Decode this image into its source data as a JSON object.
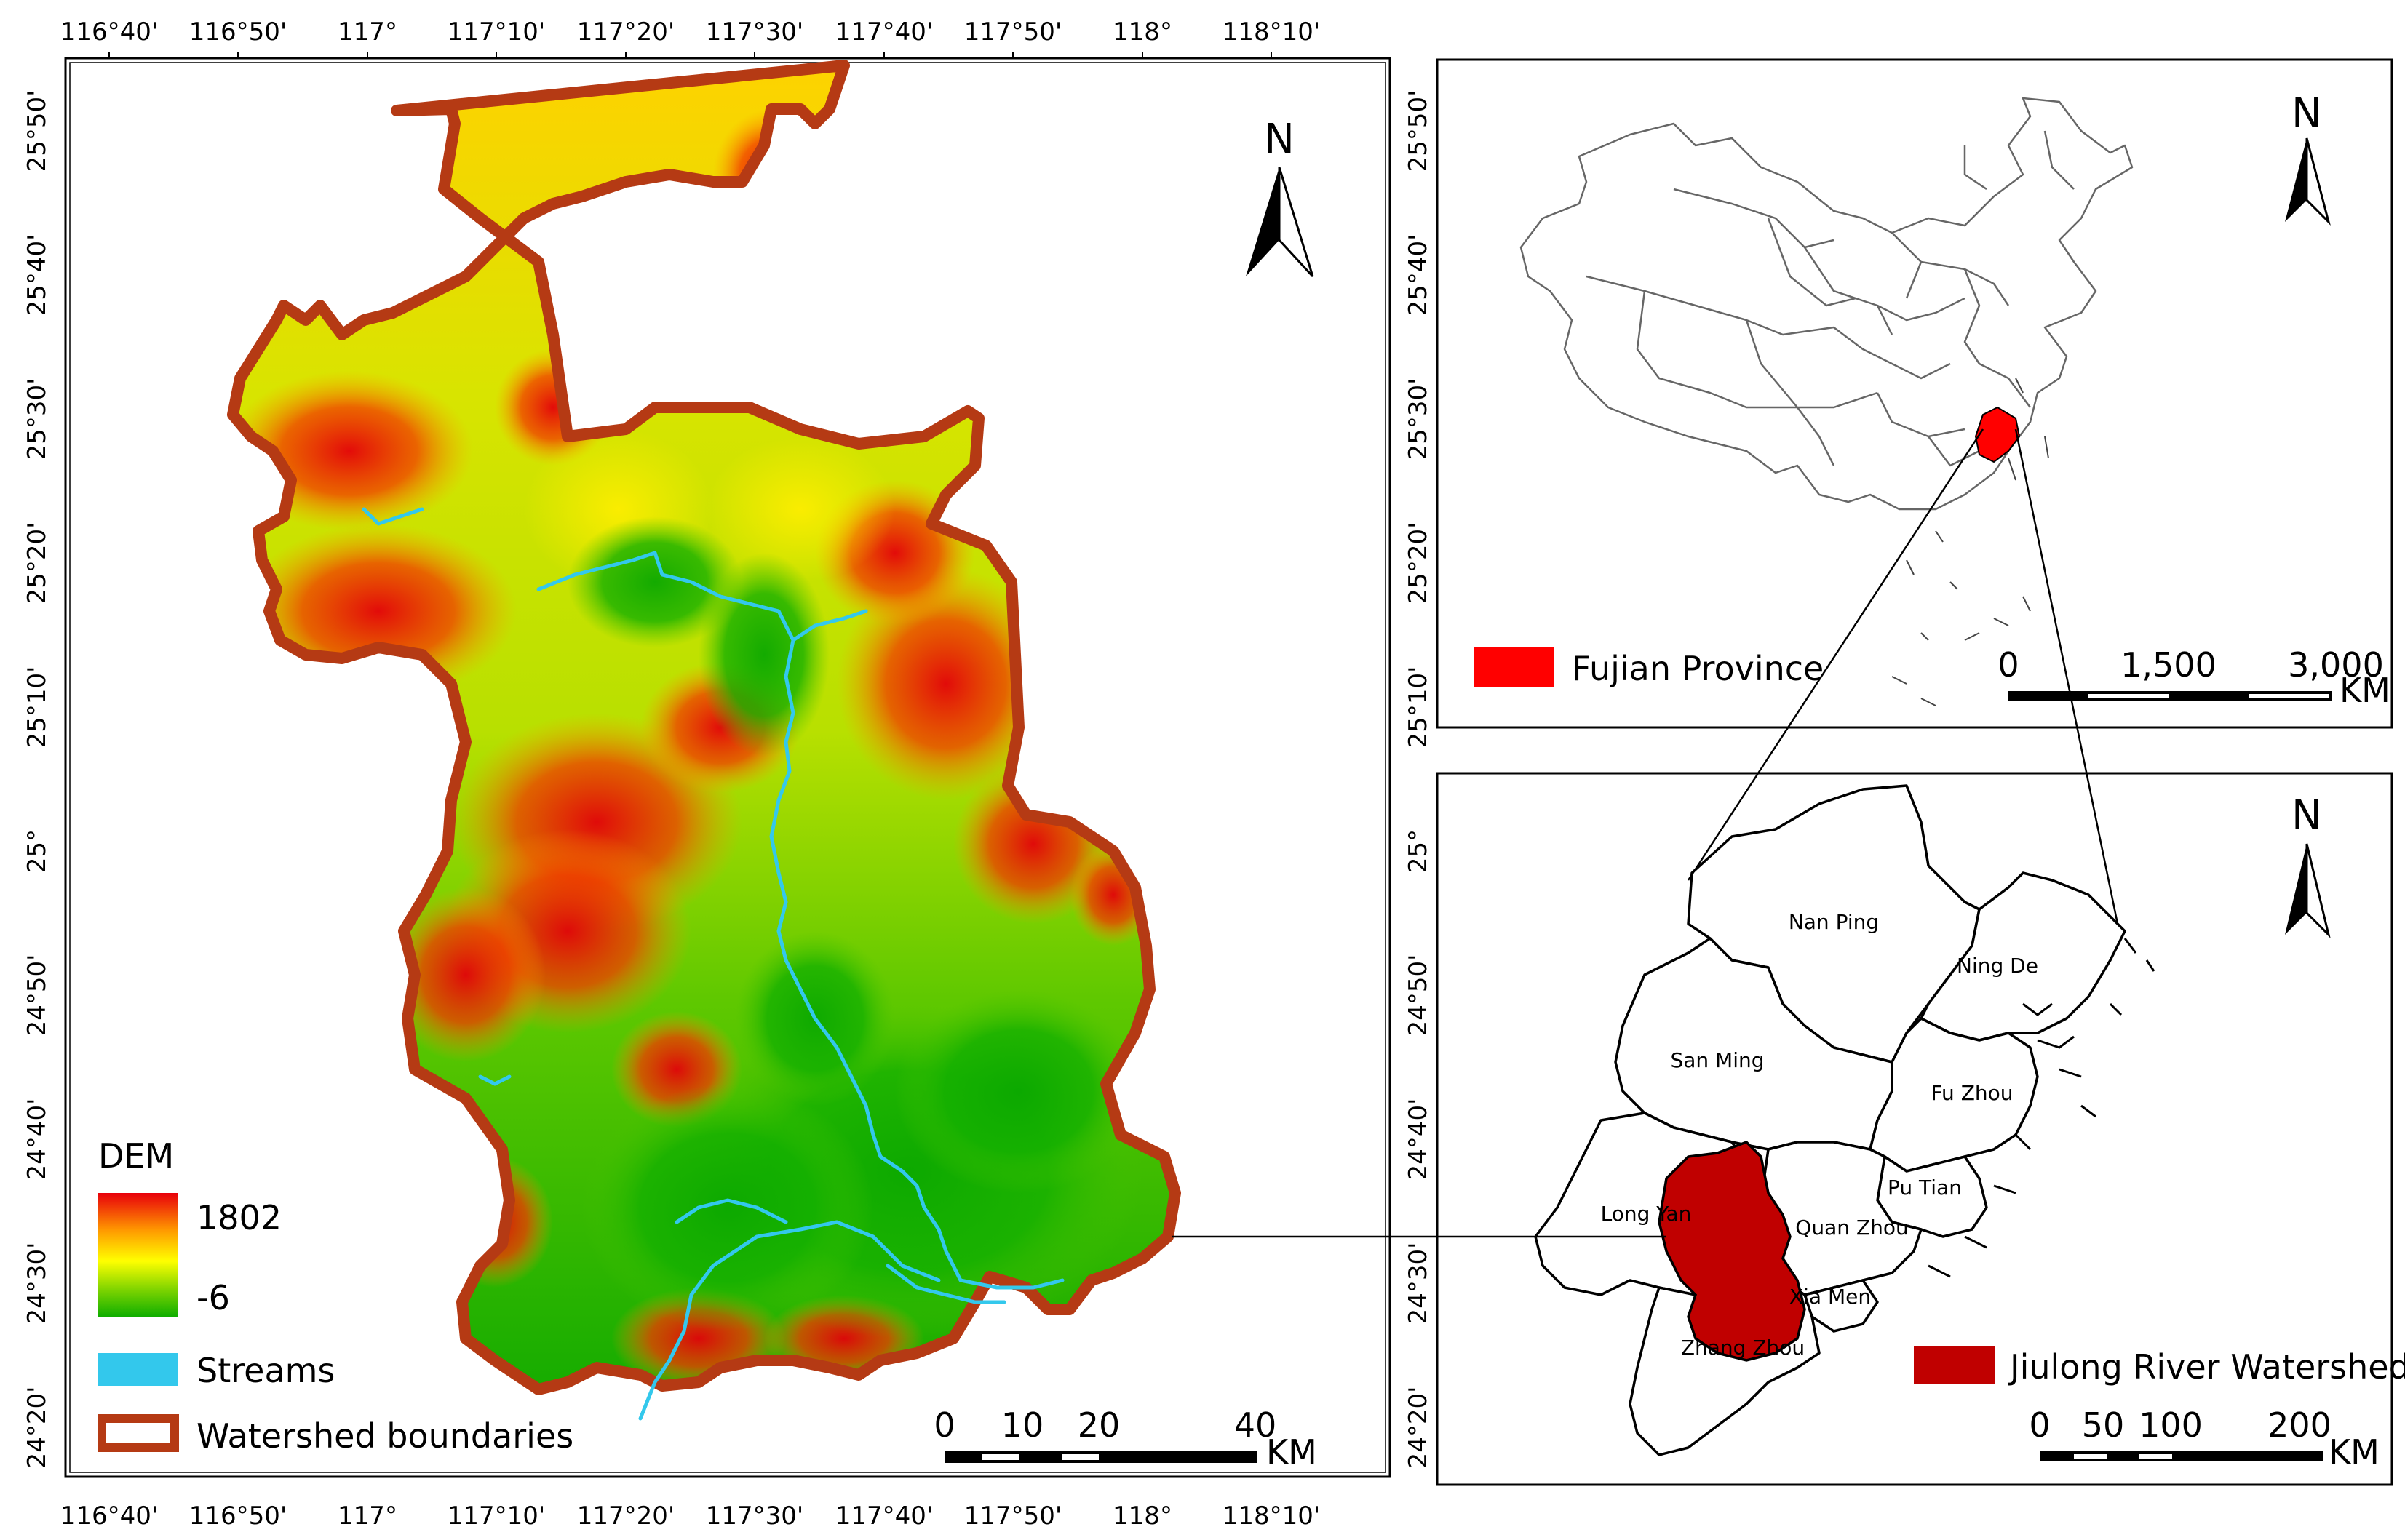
{
  "main_map": {
    "top_ticks": [
      "116°40'",
      "116°50'",
      "117°",
      "117°10'",
      "117°20'",
      "117°30'",
      "117°40'",
      "117°50'",
      "118°",
      "118°10'"
    ],
    "bottom_ticks": [
      "116°40'",
      "116°50'",
      "117°",
      "117°10'",
      "117°20'",
      "117°30'",
      "117°40'",
      "117°50'",
      "118°",
      "118°10'"
    ],
    "left_ticks": [
      "25°50'",
      "25°40'",
      "25°30'",
      "25°20'",
      "25°10'",
      "25°",
      "24°50'",
      "24°40'",
      "24°30'",
      "24°20'"
    ],
    "right_ticks": [
      "25°50'",
      "25°40'",
      "25°30'",
      "25°20'",
      "25°10'",
      "25°",
      "24°50'",
      "24°40'",
      "24°30'",
      "24°20'"
    ],
    "north_label": "N",
    "legend": {
      "dem_title": "DEM",
      "dem_max": "1802",
      "dem_min": "-6",
      "streams_label": "Streams",
      "boundary_label": "Watershed boundaries"
    },
    "scale": {
      "labels": [
        "0",
        "10",
        "20",
        "40"
      ],
      "unit": "KM"
    },
    "colors": {
      "dem_high": "#e8000b",
      "dem_mid_high": "#ff9900",
      "dem_mid": "#ffff00",
      "dem_mid_low": "#7fd400",
      "dem_low": "#0fae00",
      "streams": "#33c8ec",
      "boundary": "#b53a14"
    }
  },
  "china_inset": {
    "north_label": "N",
    "legend_label": "Fujian Province",
    "legend_color": "#ff0000",
    "scale": {
      "labels": [
        "0",
        "1,500",
        "3,000"
      ],
      "unit": "KM"
    }
  },
  "fujian_inset": {
    "north_label": "N",
    "cities": [
      "Nan Ping",
      "Ning De",
      "San Ming",
      "Fu Zhou",
      "Pu Tian",
      "Long Yan",
      "Quan Zhou",
      "Xia Men",
      "Zhang Zhou"
    ],
    "legend_label": "Jiulong River Watershed",
    "legend_color": "#c00000",
    "scale": {
      "labels": [
        "0",
        "50",
        "100",
        "200"
      ],
      "unit": "KM"
    }
  }
}
